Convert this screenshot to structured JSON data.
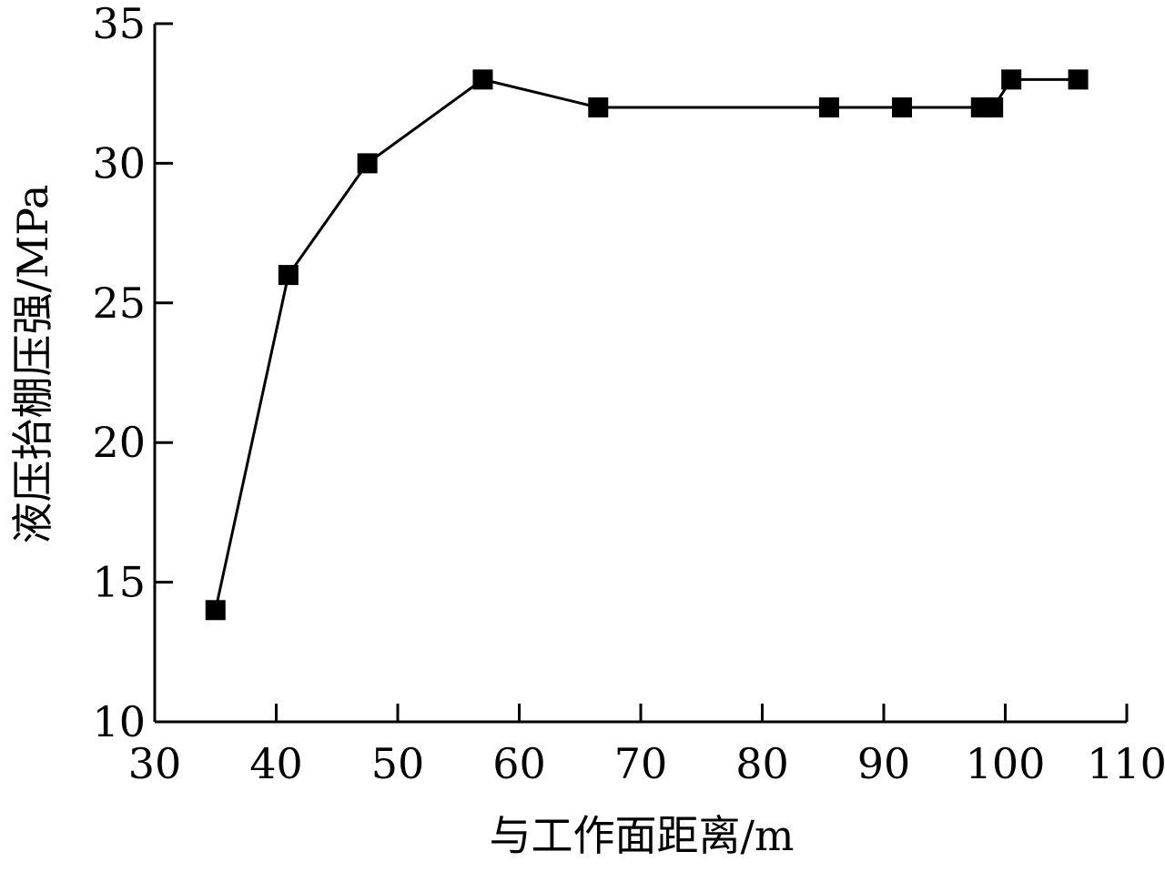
{
  "chart_data": {
    "type": "line",
    "title": "",
    "xlabel": "与工作面距离/m",
    "ylabel": "液压抬棚压强/MPa",
    "xlim": [
      30,
      110
    ],
    "ylim": [
      10,
      35
    ],
    "x_ticks": [
      "30",
      "40",
      "50",
      "60",
      "70",
      "80",
      "90",
      "100",
      "110"
    ],
    "y_ticks": [
      "10",
      "15",
      "20",
      "25",
      "30",
      "35"
    ],
    "grid": false,
    "legend": "none",
    "marker": "square",
    "series": [
      {
        "x": [
          35,
          41,
          47.5,
          57,
          66.5,
          85.5,
          91.5,
          98,
          99,
          100.5,
          106
        ],
        "y": [
          14,
          26,
          30,
          33,
          32,
          32,
          32,
          32,
          32,
          33,
          33
        ]
      }
    ],
    "colors": {
      "line": "#000000",
      "marker": "#000000",
      "axis": "#000000"
    }
  }
}
